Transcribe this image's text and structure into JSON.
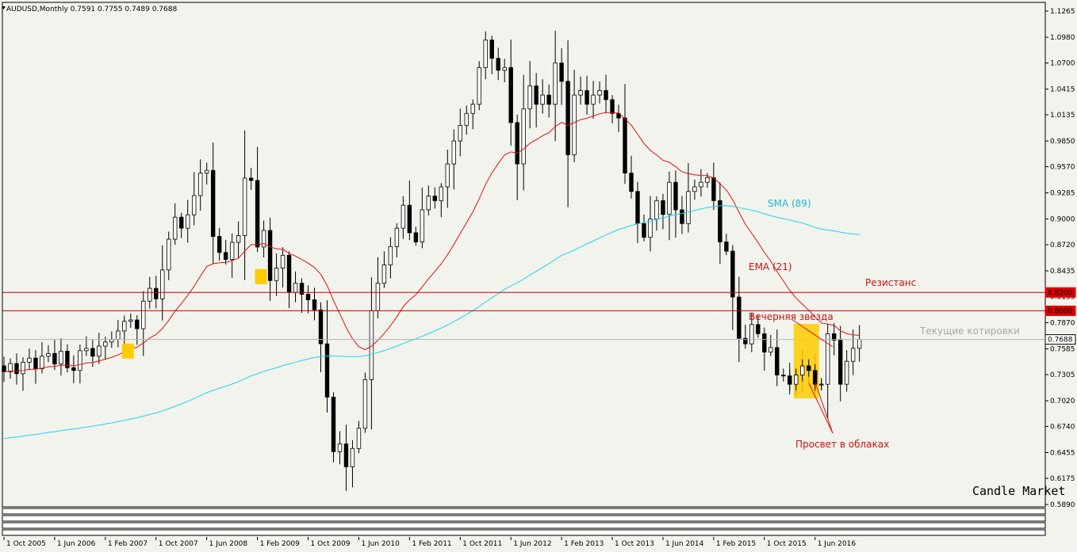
{
  "header": {
    "symbol": "AUDUSD,Monthly",
    "ohlc": "0.7591 0.7755 0.7489 0.7688"
  },
  "watermark": "Candle Market",
  "colors": {
    "background": "#f1f3ec",
    "bull_fill": "#ffffff",
    "bear_fill": "#000000",
    "ema": "#dd1111",
    "sma": "#22d3ee",
    "resistance": "#cc0000",
    "current_line": "#b4b4b4",
    "highlight": "#ffcc00",
    "price_tag_red": "#dd0000",
    "price_tag_white": "#ffffff"
  },
  "chart_data": {
    "type": "candlestick",
    "ylim": [
      0.5815,
      1.1375
    ],
    "y_ticks": [
      "1.1265",
      "1.0980",
      "1.0700",
      "1.0415",
      "1.0135",
      "0.9850",
      "0.9570",
      "0.9285",
      "0.9000",
      "0.8720",
      "0.8435",
      "0.8155",
      "0.7870",
      "0.7585",
      "0.7305",
      "0.7020",
      "0.6740",
      "0.6455",
      "0.6175",
      "0.5890"
    ],
    "x_ticks": [
      "1 Oct 2005",
      "1 Jun 2006",
      "1 Feb 2007",
      "1 Oct 2007",
      "1 Jun 2008",
      "1 Feb 2009",
      "1 Oct 2009",
      "1 Jun 2010",
      "1 Feb 2011",
      "1 Oct 2011",
      "1 Jun 2012",
      "1 Feb 2013",
      "1 Oct 2013",
      "1 Jun 2014",
      "1 Feb 2015",
      "1 Oct 2015",
      "1 Jun 2016"
    ],
    "x_tick_index": [
      0,
      8,
      16,
      24,
      32,
      40,
      48,
      56,
      64,
      72,
      80,
      88,
      96,
      104,
      112,
      120,
      128
    ],
    "start_month": "Oct 2005",
    "closes": [
      0.7335,
      0.7425,
      0.7315,
      0.744,
      0.7485,
      0.737,
      0.7505,
      0.7535,
      0.742,
      0.756,
      0.738,
      0.735,
      0.7565,
      0.759,
      0.7505,
      0.7615,
      0.766,
      0.769,
      0.778,
      0.7885,
      0.79,
      0.7805,
      0.8105,
      0.8245,
      0.813,
      0.8445,
      0.878,
      0.902,
      0.89,
      0.9045,
      0.9255,
      0.95,
      0.953,
      0.881,
      0.8635,
      0.856,
      0.8745,
      0.882,
      0.9445,
      0.942,
      0.8695,
      0.8875,
      0.833,
      0.8465,
      0.8605,
      0.82,
      0.83,
      0.818,
      0.812,
      0.801,
      0.764,
      0.706,
      0.6465,
      0.655,
      0.63,
      0.65,
      0.672,
      0.725,
      0.8,
      0.83,
      0.85,
      0.87,
      0.89,
      0.915,
      0.885,
      0.875,
      0.91,
      0.925,
      0.92,
      0.935,
      0.96,
      0.985,
      1.002,
      1.015,
      1.025,
      1.065,
      1.095,
      1.075,
      1.062,
      1.065,
      1.005,
      0.96,
      1.02,
      1.045,
      1.025,
      1.035,
      1.025,
      1.07,
      1.05,
      0.97,
      1.035,
      1.04,
      1.025,
      1.035,
      1.04,
      1.03,
      1.015,
      1.01,
      0.95,
      0.93,
      0.895,
      0.88,
      0.9,
      0.92,
      0.905,
      0.94,
      0.91,
      0.895,
      0.93,
      0.935,
      0.94,
      0.945,
      0.92,
      0.875,
      0.865,
      0.815,
      0.77,
      0.764,
      0.785,
      0.775,
      0.755,
      0.76,
      0.73,
      0.729,
      0.72,
      0.73,
      0.74,
      0.735,
      0.72,
      0.72,
      0.775,
      0.768,
      0.72,
      0.745,
      0.7591,
      0.7688
    ],
    "ema_label": "EMA (21)",
    "sma_label": "SMA (89)",
    "resistance_levels": [
      0.82,
      0.8
    ],
    "resistance_label": "Резистанс",
    "current_price": 0.7688,
    "current_label": "Текущие котировки",
    "price_tags": [
      "0.8200",
      "0.8000",
      "0.7688"
    ],
    "evening_star_label": "Вечерняя звезда",
    "piercing_label": "Просвет в облаках",
    "highlight_indices": [
      19,
      40,
      125,
      127
    ]
  }
}
